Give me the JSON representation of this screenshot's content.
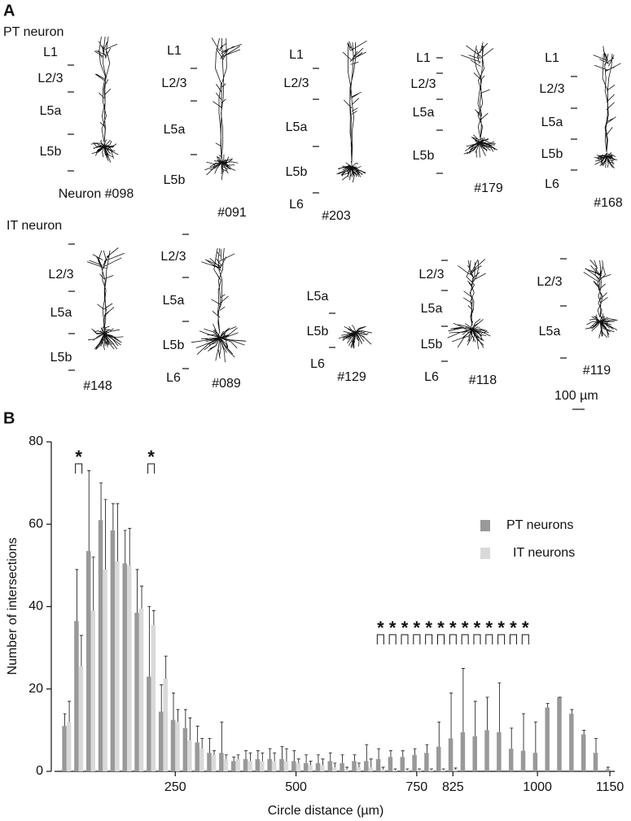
{
  "panel_a": {
    "panel_label": "A",
    "pt_row": {
      "label": "PT neuron",
      "neurons": [
        {
          "id": "Neuron #098",
          "layers": [
            "L1",
            "L2/3",
            "L5a",
            "L5b"
          ]
        },
        {
          "id": "#091",
          "layers": [
            "L1",
            "L2/3",
            "L5a",
            "L5b"
          ]
        },
        {
          "id": "#203",
          "layers": [
            "L1",
            "L2/3",
            "L5a",
            "L5b",
            "L6"
          ]
        },
        {
          "id": "#179",
          "layers": [
            "L1",
            "L2/3",
            "L5a",
            "L5b"
          ]
        },
        {
          "id": "#168",
          "layers": [
            "L1",
            "L2/3",
            "L5a",
            "L5b",
            "L6"
          ]
        }
      ]
    },
    "it_row": {
      "label": "IT neuron",
      "neurons": [
        {
          "id": "#148",
          "layers": [
            "L2/3",
            "L5a",
            "L5b"
          ]
        },
        {
          "id": "#089",
          "layers": [
            "L2/3",
            "L5a",
            "L5b",
            "L6"
          ]
        },
        {
          "id": "#129",
          "layers": [
            "L5a",
            "L5b",
            "L6"
          ]
        },
        {
          "id": "#118",
          "layers": [
            "L2/3",
            "L5a",
            "L5b",
            "L6"
          ]
        },
        {
          "id": "#119",
          "layers": [
            "L2/3",
            "L5a"
          ]
        }
      ]
    },
    "scale_bar": "100 µm"
  },
  "panel_b_label": "B",
  "chart_data": {
    "type": "bar",
    "x_label": "Circle distance (µm)",
    "y_label": "Number of intersections",
    "x": [
      25,
      50,
      75,
      100,
      125,
      150,
      175,
      200,
      225,
      250,
      275,
      300,
      325,
      350,
      375,
      400,
      425,
      450,
      475,
      500,
      525,
      550,
      575,
      600,
      625,
      650,
      675,
      700,
      725,
      750,
      775,
      800,
      825,
      850,
      875,
      900,
      925,
      950,
      975,
      1000,
      1025,
      1050,
      1075,
      1100,
      1125,
      1150
    ],
    "series": [
      {
        "name": "PT neurons",
        "color": "#999999",
        "values": [
          11,
          36.5,
          53.5,
          61,
          58.5,
          50.5,
          38.5,
          23,
          14.5,
          12.5,
          10.5,
          7,
          4.5,
          4.5,
          2.5,
          3,
          3,
          3,
          3,
          2.5,
          2,
          2,
          2.5,
          2,
          2.5,
          2.5,
          3,
          3.5,
          3.5,
          4,
          4.5,
          6,
          8,
          9.5,
          8.5,
          10,
          9.5,
          5.5,
          5,
          4.5,
          15.5,
          18,
          14,
          9,
          4.5,
          0.5
        ],
        "errors": [
          3,
          12.5,
          19.5,
          9,
          6.5,
          8,
          10.5,
          17,
          6.5,
          6.5,
          4.5,
          4,
          3.5,
          7.5,
          1,
          2,
          2,
          2.5,
          3,
          2.5,
          2,
          2,
          2,
          2,
          1.5,
          4,
          2.5,
          1.5,
          1.5,
          1.5,
          2,
          6,
          11,
          15.5,
          8.5,
          8,
          12,
          5,
          9,
          7.5,
          1,
          0,
          1,
          1,
          3.5,
          0.5
        ]
      },
      {
        "name": "IT neurons",
        "color": "#d9d9d9",
        "values": [
          12,
          25.5,
          39,
          49,
          51,
          50,
          39.5,
          35.5,
          22.5,
          12,
          7.5,
          5.5,
          4,
          3,
          3,
          2.5,
          2.5,
          2.5,
          2.5,
          2,
          1.5,
          1.5,
          1,
          0.5,
          1,
          1,
          0.5,
          0.3,
          0.3,
          0.3,
          0.3,
          0.3,
          0.5,
          0,
          0,
          0,
          0,
          0,
          0,
          0,
          0,
          0,
          0,
          0,
          0,
          0
        ],
        "errors": [
          5,
          7.5,
          13,
          17,
          14,
          9,
          5.5,
          3.5,
          5.5,
          3,
          5.5,
          2.5,
          1,
          1,
          1,
          2,
          2,
          2,
          3,
          1,
          1,
          1.5,
          1,
          0.5,
          1,
          2,
          0.5,
          0.3,
          0.3,
          0.3,
          0.3,
          0.3,
          0.3,
          0,
          0,
          0,
          0,
          0,
          0,
          0,
          0,
          0,
          0,
          0,
          0,
          0
        ]
      }
    ],
    "significance_label": "*",
    "significant_x": [
      50,
      200,
      675,
      700,
      725,
      750,
      775,
      800,
      825,
      850,
      875,
      900,
      925,
      950,
      975
    ],
    "xlim": [
      0,
      1160
    ],
    "xticks": [
      250,
      500,
      750,
      825,
      1000,
      1150
    ],
    "ylim": [
      0,
      80
    ],
    "yticks": [
      0,
      20,
      40,
      60,
      80
    ],
    "legend": "right"
  }
}
